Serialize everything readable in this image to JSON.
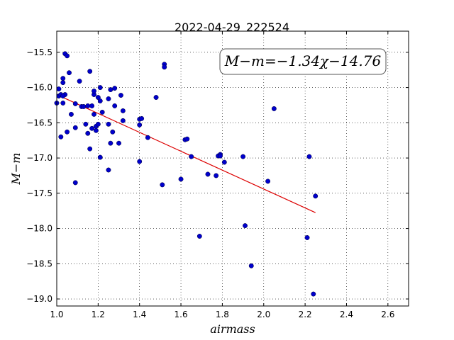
{
  "chart_data": {
    "type": "scatter",
    "title": "2022-04-29_222524",
    "xlabel": "airmass",
    "ylabel": "M−m",
    "xlim": [
      1.0,
      2.7
    ],
    "ylim": [
      -19.1,
      -15.2
    ],
    "xticks": [
      "1.0",
      "1.2",
      "1.4",
      "1.6",
      "1.8",
      "2.0",
      "2.2",
      "2.4",
      "2.6"
    ],
    "xtick_values": [
      1.0,
      1.2,
      1.4,
      1.6,
      1.8,
      2.0,
      2.2,
      2.4,
      2.6
    ],
    "yticks": [
      "−15.5",
      "−16.0",
      "−16.5",
      "−17.0",
      "−17.5",
      "−18.0",
      "−18.5",
      "−19.0"
    ],
    "ytick_values": [
      -15.5,
      -16.0,
      -16.5,
      -17.0,
      -17.5,
      -18.0,
      -18.5,
      -19.0
    ],
    "grid": true,
    "annotation": "M−m=−1.34χ−14.76",
    "annotation_position": "top-right",
    "colors": {
      "points": "#0000cc",
      "fit": "#dd0000"
    },
    "series": [
      {
        "kind": "points",
        "x": [
          1.0,
          1.01,
          1.01,
          1.02,
          1.03,
          1.03,
          1.04,
          1.05,
          1.03,
          1.04,
          1.02,
          1.06,
          1.07,
          1.03,
          1.05,
          1.09,
          1.09,
          1.11,
          1.12,
          1.14,
          1.15,
          1.16,
          1.16,
          1.17,
          1.18,
          1.18,
          1.19,
          1.19,
          1.2,
          1.2,
          1.21,
          1.21,
          1.22,
          1.17,
          1.18,
          1.21,
          1.25,
          1.25,
          1.26,
          1.26,
          1.27,
          1.28,
          1.28,
          1.3,
          1.31,
          1.32,
          1.32,
          1.25,
          1.4,
          1.4,
          1.41,
          1.44,
          1.48,
          1.51,
          1.52,
          1.52,
          1.6,
          1.62,
          1.63,
          1.65,
          1.69,
          1.73,
          1.77,
          1.78,
          1.79,
          1.79,
          1.81,
          1.9,
          1.91,
          1.94,
          2.02,
          2.05,
          2.21,
          2.22,
          2.24,
          2.25,
          1.09,
          1.4,
          1.13,
          1.15
        ],
        "y": [
          -16.22,
          -16.02,
          -16.12,
          -16.1,
          -15.93,
          -15.87,
          -15.52,
          -15.55,
          -16.22,
          -16.1,
          -16.7,
          -15.79,
          -16.38,
          -16.12,
          -16.63,
          -16.57,
          -16.23,
          -15.91,
          -16.27,
          -16.52,
          -16.65,
          -15.77,
          -16.87,
          -16.26,
          -16.1,
          -16.38,
          -16.55,
          -16.61,
          -16.14,
          -16.52,
          -16.0,
          -16.19,
          -16.35,
          -16.58,
          -16.05,
          -16.99,
          -16.16,
          -16.52,
          -16.03,
          -16.79,
          -16.63,
          -16.26,
          -16.01,
          -16.79,
          -16.11,
          -16.33,
          -16.47,
          -17.17,
          -16.53,
          -16.45,
          -16.44,
          -16.71,
          -16.14,
          -17.38,
          -15.67,
          -15.71,
          -17.3,
          -16.74,
          -16.73,
          -16.98,
          -18.11,
          -17.23,
          -17.25,
          -16.97,
          -16.95,
          -16.97,
          -17.06,
          -16.98,
          -17.96,
          -18.53,
          -17.33,
          -16.3,
          -18.13,
          -16.98,
          -18.93,
          -17.54,
          -17.35,
          -17.05,
          -16.27,
          -16.26
        ]
      },
      {
        "kind": "fit-line",
        "x": [
          1.0,
          2.25
        ],
        "y": [
          -16.1,
          -17.775
        ]
      }
    ]
  }
}
